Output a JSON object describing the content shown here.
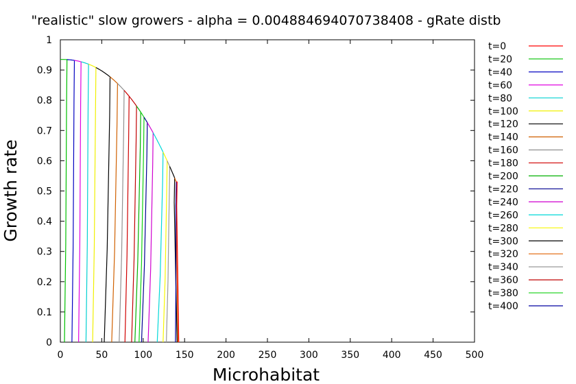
{
  "chart_data": {
    "type": "line",
    "title": "\"realistic\" slow growers - alpha = 0.004884694070738408 - gRate distb",
    "xlabel": "Microhabitat",
    "ylabel": "Growth rate",
    "xlim": [
      0,
      500
    ],
    "ylim": [
      0,
      1
    ],
    "x_ticks": [
      "0",
      "50",
      "100",
      "150",
      "200",
      "250",
      "300",
      "350",
      "400",
      "450",
      "500"
    ],
    "y_ticks": [
      "0",
      "0.1",
      "0.2",
      "0.3",
      "0.4",
      "0.5",
      "0.6",
      "0.7",
      "0.8",
      "0.9",
      "1"
    ],
    "grid": false,
    "legend_position": "right",
    "envelope": {
      "y_at_x0": 0.935,
      "x_end": 140,
      "y_at_end": 0.53
    },
    "series": [
      {
        "name": "t=0",
        "color": "#ff0000",
        "front_x": 141,
        "tail_x": 143
      },
      {
        "name": "t=20",
        "color": "#00c000",
        "front_x": 8,
        "tail_x": 5
      },
      {
        "name": "t=40",
        "color": "#0000c0",
        "front_x": 17,
        "tail_x": 14
      },
      {
        "name": "t=60",
        "color": "#e000e0",
        "front_x": 25,
        "tail_x": 22
      },
      {
        "name": "t=80",
        "color": "#00d0d0",
        "front_x": 34,
        "tail_x": 31
      },
      {
        "name": "t=100",
        "color": "#f0f000",
        "front_x": 43,
        "tail_x": 39
      },
      {
        "name": "t=120",
        "color": "#000000",
        "front_x": 60,
        "tail_x": 53
      },
      {
        "name": "t=140",
        "color": "#d06000",
        "front_x": 69,
        "tail_x": 62
      },
      {
        "name": "t=160",
        "color": "#909090",
        "front_x": 77,
        "tail_x": 71
      },
      {
        "name": "t=180",
        "color": "#d00000",
        "front_x": 83,
        "tail_x": 78
      },
      {
        "name": "t=200",
        "color": "#00b000",
        "front_x": 97,
        "tail_x": 90
      },
      {
        "name": "t=220",
        "color": "#000090",
        "front_x": 105,
        "tail_x": 98
      },
      {
        "name": "t=240",
        "color": "#d000d0",
        "front_x": 112,
        "tail_x": 106
      },
      {
        "name": "t=260",
        "color": "#00d8d8",
        "front_x": 124,
        "tail_x": 117
      },
      {
        "name": "t=280",
        "color": "#f8f800",
        "front_x": 129,
        "tail_x": 124
      },
      {
        "name": "t=300",
        "color": "#000000",
        "front_x": 138,
        "tail_x": 141
      },
      {
        "name": "t=320",
        "color": "#e06000",
        "front_x": 140,
        "tail_x": 142
      },
      {
        "name": "t=340",
        "color": "#999999",
        "front_x": 132,
        "tail_x": 128
      },
      {
        "name": "t=360",
        "color": "#c00000",
        "front_x": 92,
        "tail_x": 86
      },
      {
        "name": "t=380",
        "color": "#10d010",
        "front_x": 101,
        "tail_x": 95
      },
      {
        "name": "t=400",
        "color": "#0000a0",
        "front_x": 140,
        "tail_x": 139
      }
    ]
  }
}
